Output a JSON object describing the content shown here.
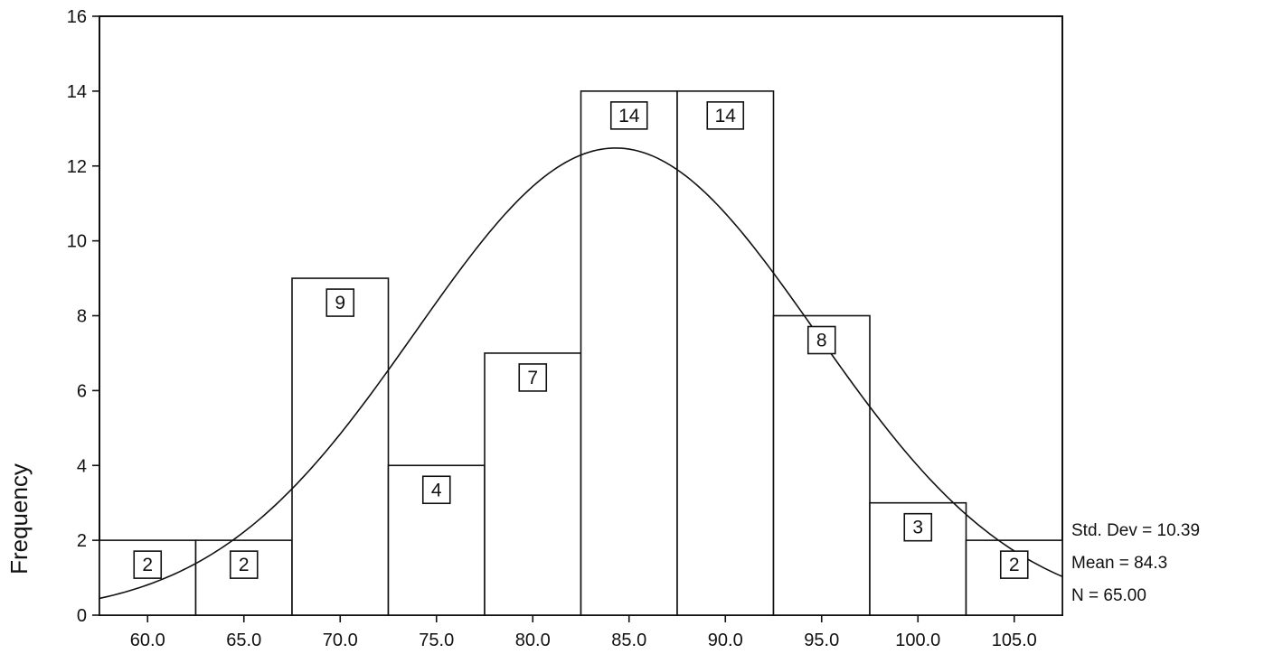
{
  "chart_data": {
    "type": "bar",
    "title": "",
    "xlabel": "",
    "ylabel": "Frequency",
    "ylim": [
      0,
      16
    ],
    "yticks": [
      "0",
      "2",
      "4",
      "6",
      "8",
      "10",
      "12",
      "14",
      "16"
    ],
    "categories": [
      "60.0",
      "65.0",
      "70.0",
      "75.0",
      "80.0",
      "85.0",
      "90.0",
      "95.0",
      "100.0",
      "105.0"
    ],
    "xticks": [
      "60.0",
      "65.0",
      "70.0",
      "75.0",
      "80.0",
      "85.0",
      "90.0",
      "95.0",
      "100.0",
      "105.0"
    ],
    "bin_width": 5,
    "values": [
      2,
      2,
      9,
      4,
      7,
      14,
      14,
      8,
      3,
      2
    ],
    "normal_curve": {
      "mean": 84.3,
      "std_dev": 10.39,
      "n": 65
    },
    "stats": {
      "std_dev": "Std. Dev = 10.39",
      "mean": "Mean = 84.3",
      "n": "N = 65.00"
    },
    "grid": false,
    "legend": "none"
  }
}
